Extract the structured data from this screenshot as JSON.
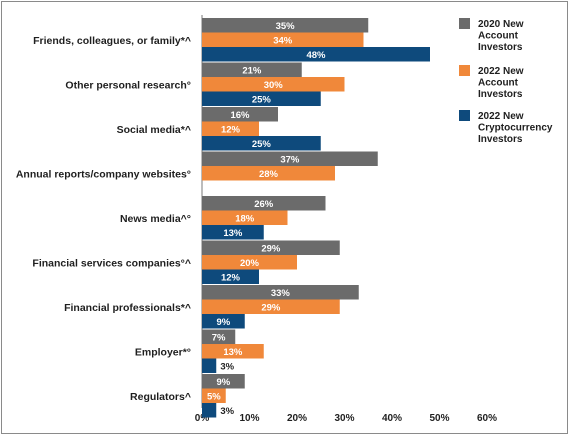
{
  "chart_data": {
    "type": "bar",
    "orientation": "horizontal",
    "title": "",
    "xlabel": "",
    "ylabel": "",
    "xlim": [
      0,
      60
    ],
    "ticks": [
      "0%",
      "10%",
      "20%",
      "30%",
      "40%",
      "50%",
      "60%"
    ],
    "grid": false,
    "legend_position": "top-right",
    "categories": [
      "Friends, colleagues, or family*^",
      "Other personal research°",
      "Social media*^",
      "Annual reports/company websites°",
      "News media^°",
      "Financial services companies°^",
      "Financial professionals*^",
      "Employer*°",
      "Regulators^"
    ],
    "series": [
      {
        "name": "2020 New Account Investors",
        "legend_lines": [
          "2020 New",
          "Account",
          "Investors"
        ],
        "color": "#6b6b6b",
        "values": [
          35,
          21,
          16,
          37,
          26,
          29,
          33,
          7,
          9
        ]
      },
      {
        "name": "2022 New Account Investors",
        "legend_lines": [
          "2022 New",
          "Account",
          "Investors"
        ],
        "color": "#f0883a",
        "values": [
          34,
          30,
          12,
          28,
          18,
          20,
          29,
          13,
          5
        ]
      },
      {
        "name": "2022 New Cryptocurrency Investors",
        "legend_lines": [
          "2022 New",
          "Cryptocurrency",
          "Investors"
        ],
        "color": "#0e4a7c",
        "values": [
          48,
          25,
          25,
          null,
          13,
          12,
          9,
          3,
          3
        ]
      }
    ]
  }
}
